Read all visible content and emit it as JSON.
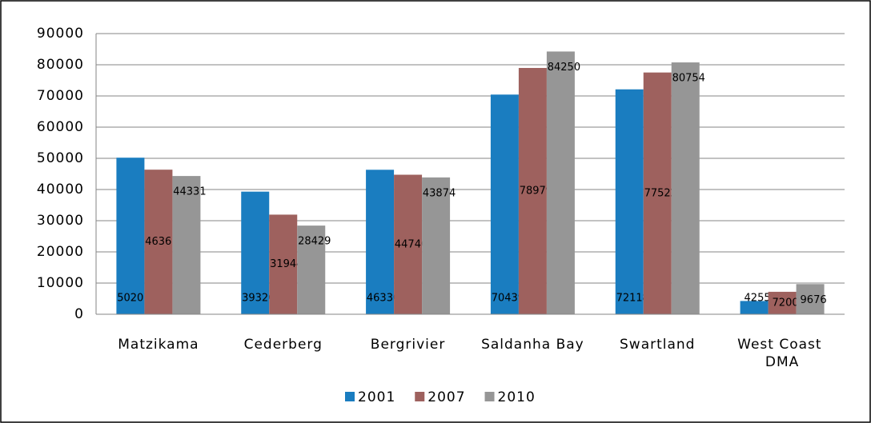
{
  "chart_data": {
    "type": "bar",
    "categories": [
      "Matzikama",
      "Cederberg",
      "Bergrivier",
      "Saldanha Bay",
      "Swartland",
      "West Coast DMA"
    ],
    "series": [
      {
        "name": "2001",
        "color": "#1a7dc0",
        "values": [
          50207,
          39320,
          46330,
          70439,
          72118,
          4255
        ]
      },
      {
        "name": "2007",
        "color": "#9e615e",
        "values": [
          46361,
          31944,
          44740,
          78979,
          77522,
          7200
        ]
      },
      {
        "name": "2010",
        "color": "#969696",
        "values": [
          44331,
          28429,
          43874,
          84250,
          80754,
          9676
        ]
      }
    ],
    "ylim": [
      0,
      90000
    ],
    "yticks": [
      0,
      10000,
      20000,
      30000,
      40000,
      50000,
      60000,
      70000,
      80000,
      90000
    ],
    "grid": true,
    "legend": "bottom"
  }
}
